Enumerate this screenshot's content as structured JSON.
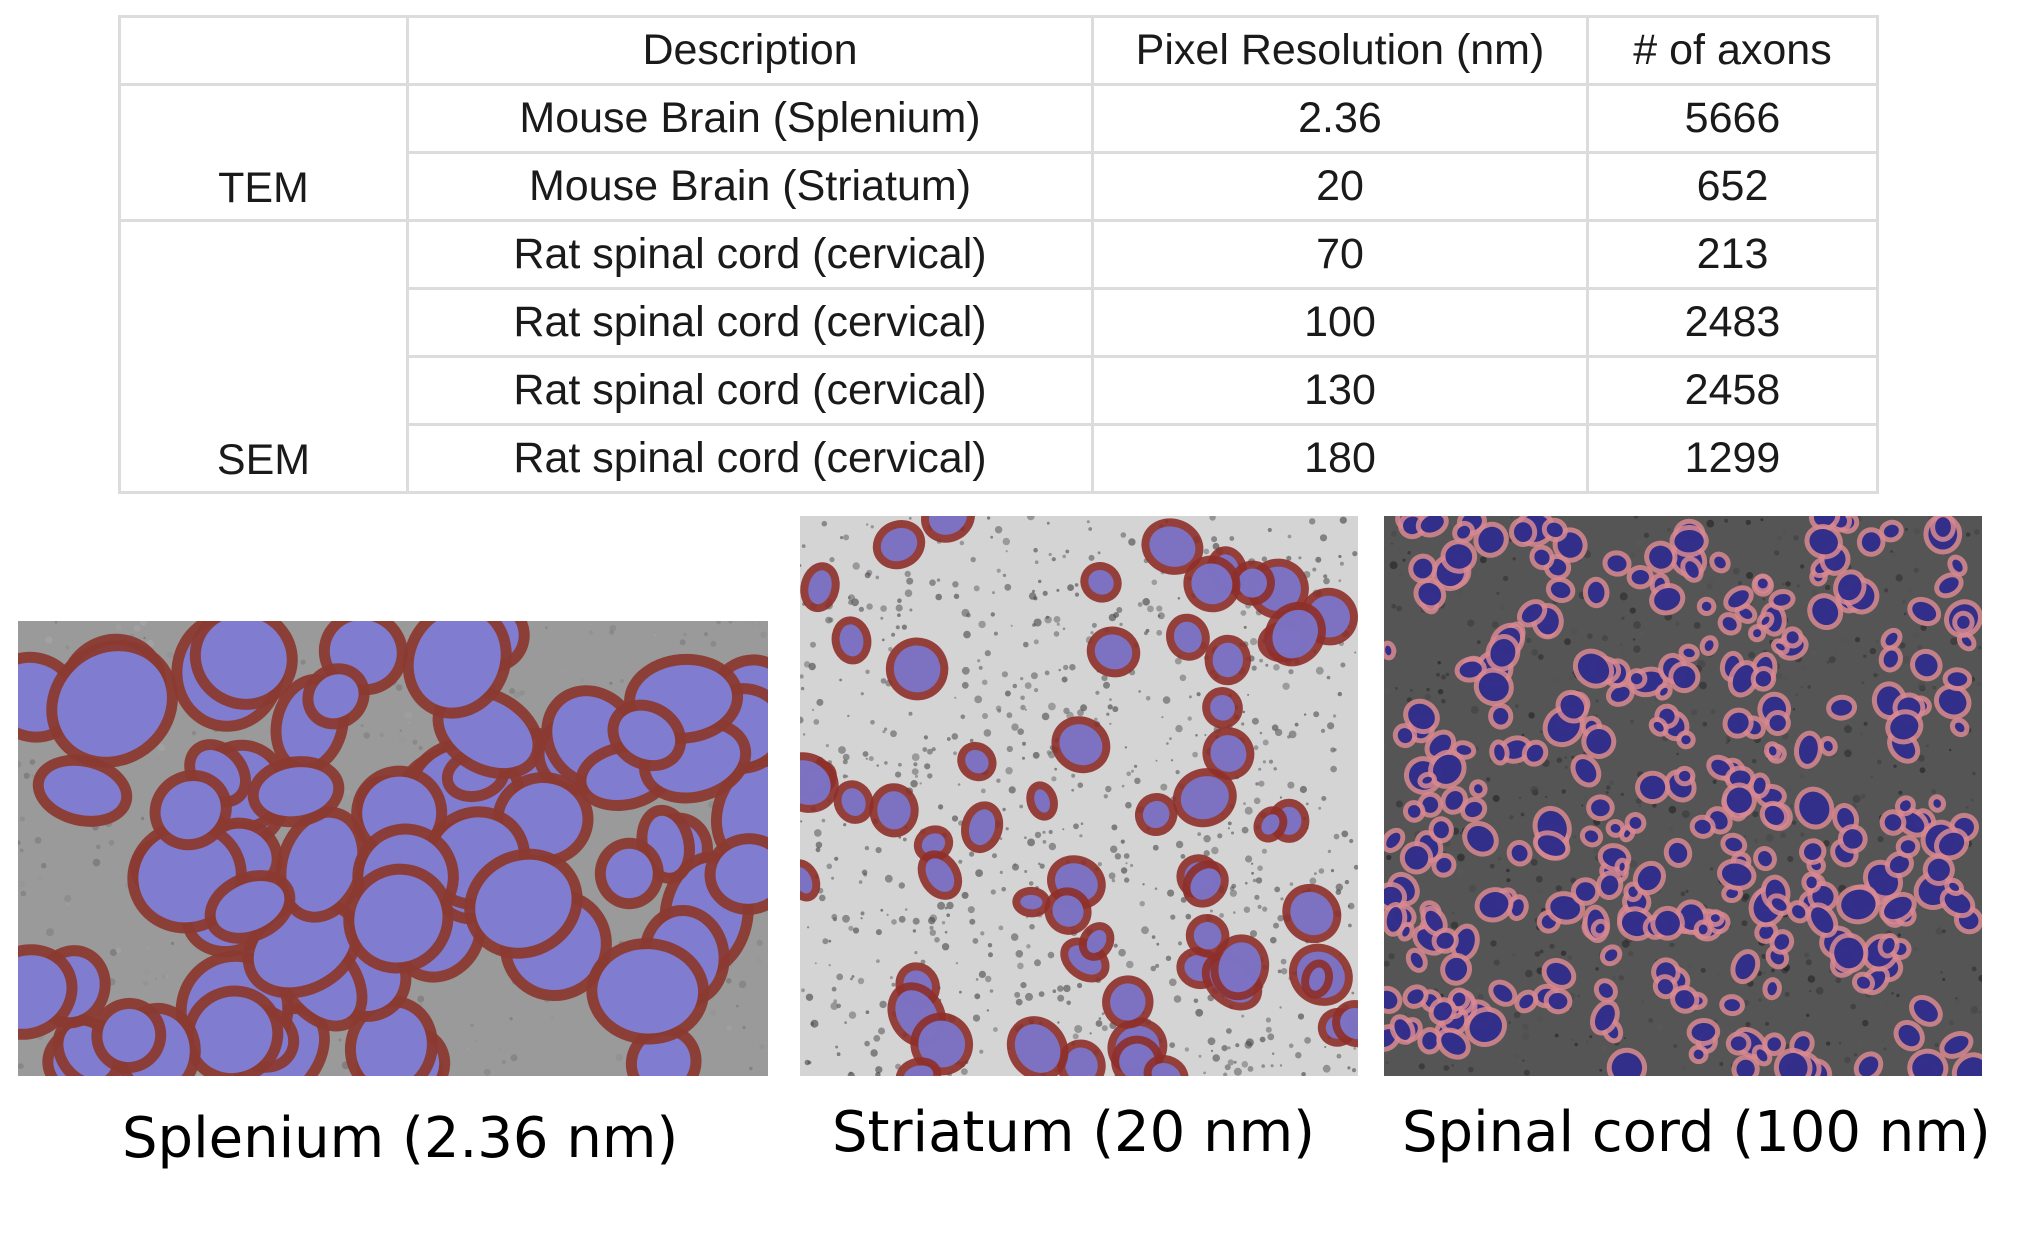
{
  "table": {
    "headers": [
      "",
      "Description",
      "Pixel Resolution (nm)",
      "# of axons"
    ],
    "groups": [
      {
        "label": "TEM",
        "rows": [
          {
            "description": "Mouse Brain (Splenium)",
            "resolution": "2.36",
            "axons": "5666"
          },
          {
            "description": "Mouse Brain (Striatum)",
            "resolution": "20",
            "axons": "652"
          }
        ]
      },
      {
        "label": "SEM",
        "rows": [
          {
            "description": "Rat spinal cord (cervical)",
            "resolution": "70",
            "axons": "213"
          },
          {
            "description": "Rat spinal cord (cervical)",
            "resolution": "100",
            "axons": "2483"
          },
          {
            "description": "Rat spinal cord (cervical)",
            "resolution": "130",
            "axons": "2458"
          },
          {
            "description": "Rat spinal cord (cervical)",
            "resolution": "180",
            "axons": "1299"
          }
        ]
      }
    ]
  },
  "panels": [
    {
      "caption": "Splenium (2.36 nm)",
      "background": "#9a9a9a",
      "myelin_color": "#8b3a32",
      "axon_color": "#8080d8"
    },
    {
      "caption": "Striatum (20 nm)",
      "background": "#d4d4d4",
      "myelin_color": "#8e2f2a",
      "axon_color": "#7a78d2"
    },
    {
      "caption": "Spinal cord (100 nm)",
      "background": "#555555",
      "myelin_color": "#d88890",
      "axon_color": "#2a2a8a"
    }
  ]
}
